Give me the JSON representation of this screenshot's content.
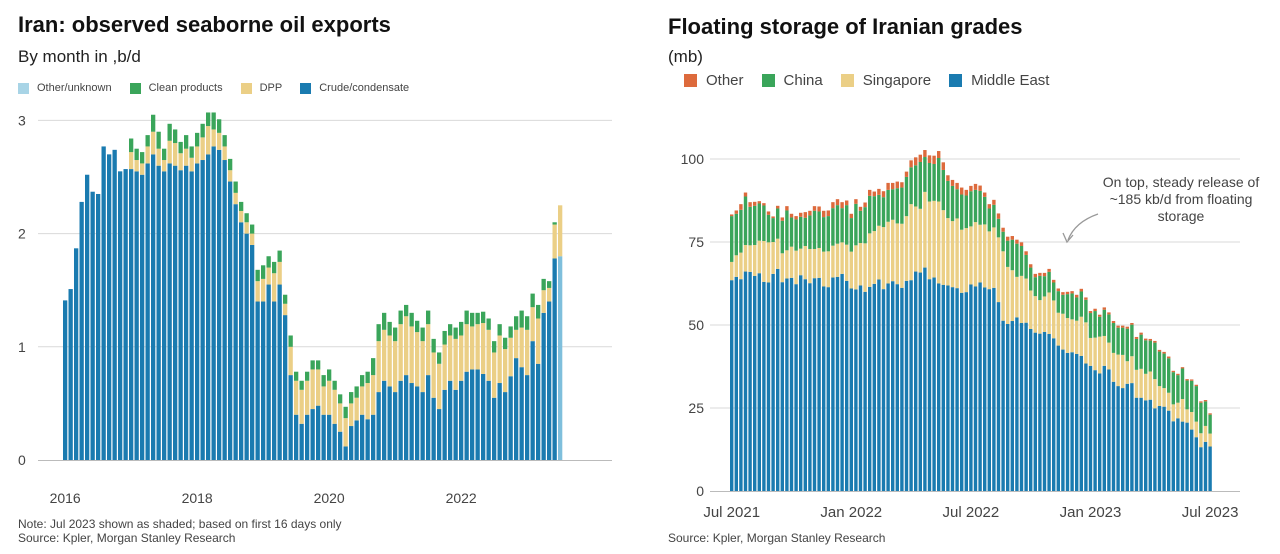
{
  "left": {
    "title": "Iran: observed seaborne oil exports",
    "subtitle": "By month in ,b/d",
    "note": "Note: Jul 2023 shown as shaded; based on first 16 days only",
    "source": "Source: Kpler, Morgan Stanley Research",
    "legend": [
      {
        "label": "Other/unknown",
        "color": "#a8d4e6"
      },
      {
        "label": "Clean products",
        "color": "#3aa55a"
      },
      {
        "label": "DPP",
        "color": "#ebcf86"
      },
      {
        "label": "Crude/condensate",
        "color": "#1a7bb0"
      }
    ]
  },
  "right": {
    "title": "Floating storage of Iranian grades",
    "subtitle": "(mb)",
    "source": "Source: Kpler, Morgan Stanley Research",
    "annotation": [
      "On top, steady release of",
      "~185 kb/d from floating",
      "storage"
    ],
    "legend": [
      {
        "label": "Other",
        "color": "#dd6a3c"
      },
      {
        "label": "China",
        "color": "#3aa55a"
      },
      {
        "label": "Singapore",
        "color": "#ebcf86"
      },
      {
        "label": "Middle East",
        "color": "#1a7bb0"
      }
    ]
  },
  "chart_data": [
    {
      "type": "bar",
      "stacked": true,
      "title": "Iran: observed seaborne oil exports",
      "subtitle": "By month in ,b/d",
      "x_tick_labels": [
        "2016",
        "2018",
        "2020",
        "2022"
      ],
      "y_tick_labels": [
        "0",
        "1",
        "2",
        "3"
      ],
      "ylim": [
        0,
        3.2
      ],
      "grid": true,
      "legend_position": "top",
      "categories": [
        "2016-01",
        "2016-02",
        "2016-03",
        "2016-04",
        "2016-05",
        "2016-06",
        "2016-07",
        "2016-08",
        "2016-09",
        "2016-10",
        "2016-11",
        "2016-12",
        "2017-01",
        "2017-02",
        "2017-03",
        "2017-04",
        "2017-05",
        "2017-06",
        "2017-07",
        "2017-08",
        "2017-09",
        "2017-10",
        "2017-11",
        "2017-12",
        "2018-01",
        "2018-02",
        "2018-03",
        "2018-04",
        "2018-05",
        "2018-06",
        "2018-07",
        "2018-08",
        "2018-09",
        "2018-10",
        "2018-11",
        "2018-12",
        "2019-01",
        "2019-02",
        "2019-03",
        "2019-04",
        "2019-05",
        "2019-06",
        "2019-07",
        "2019-08",
        "2019-09",
        "2019-10",
        "2019-11",
        "2019-12",
        "2020-01",
        "2020-02",
        "2020-03",
        "2020-04",
        "2020-05",
        "2020-06",
        "2020-07",
        "2020-08",
        "2020-09",
        "2020-10",
        "2020-11",
        "2020-12",
        "2021-01",
        "2021-02",
        "2021-03",
        "2021-04",
        "2021-05",
        "2021-06",
        "2021-07",
        "2021-08",
        "2021-09",
        "2021-10",
        "2021-11",
        "2021-12",
        "2022-01",
        "2022-02",
        "2022-03",
        "2022-04",
        "2022-05",
        "2022-06",
        "2022-07",
        "2022-08",
        "2022-09",
        "2022-10",
        "2022-11",
        "2022-12",
        "2023-01",
        "2023-02",
        "2023-03",
        "2023-04",
        "2023-05",
        "2023-06",
        "2023-07"
      ],
      "shaded_last": true,
      "series": [
        {
          "name": "Crude/condensate",
          "color": "#1a7bb0",
          "values": [
            1.41,
            1.51,
            1.87,
            2.28,
            2.52,
            2.37,
            2.35,
            2.77,
            2.7,
            2.74,
            2.55,
            2.57,
            2.57,
            2.55,
            2.52,
            2.62,
            2.7,
            2.6,
            2.55,
            2.62,
            2.6,
            2.56,
            2.6,
            2.55,
            2.62,
            2.65,
            2.7,
            2.77,
            2.74,
            2.65,
            2.46,
            2.26,
            2.1,
            2.0,
            1.9,
            1.4,
            1.4,
            1.55,
            1.4,
            1.55,
            1.28,
            0.75,
            0.4,
            0.32,
            0.4,
            0.45,
            0.48,
            0.4,
            0.4,
            0.32,
            0.25,
            0.12,
            0.3,
            0.35,
            0.4,
            0.36,
            0.4,
            0.6,
            0.7,
            0.65,
            0.6,
            0.7,
            0.75,
            0.68,
            0.65,
            0.6,
            0.75,
            0.55,
            0.45,
            0.62,
            0.7,
            0.62,
            0.7,
            0.78,
            0.8,
            0.8,
            0.76,
            0.7,
            0.55,
            0.68,
            0.6,
            0.74,
            0.9,
            0.82,
            0.75,
            1.05,
            0.85,
            1.3,
            1.4,
            1.78,
            1.8
          ]
        },
        {
          "name": "DPP",
          "color": "#ebcf86",
          "values": [
            0,
            0,
            0,
            0,
            0,
            0,
            0,
            0,
            0,
            0,
            0,
            0,
            0.15,
            0.1,
            0.1,
            0.15,
            0.2,
            0.15,
            0.1,
            0.2,
            0.2,
            0.15,
            0.15,
            0.12,
            0.15,
            0.2,
            0.25,
            0.15,
            0.15,
            0.12,
            0.1,
            0.1,
            0.1,
            0.1,
            0.1,
            0.18,
            0.2,
            0.15,
            0.25,
            0.2,
            0.1,
            0.25,
            0.3,
            0.3,
            0.3,
            0.35,
            0.32,
            0.25,
            0.3,
            0.3,
            0.25,
            0.25,
            0.2,
            0.2,
            0.25,
            0.32,
            0.35,
            0.45,
            0.45,
            0.45,
            0.45,
            0.5,
            0.52,
            0.5,
            0.48,
            0.45,
            0.45,
            0.4,
            0.4,
            0.4,
            0.4,
            0.45,
            0.4,
            0.42,
            0.38,
            0.4,
            0.45,
            0.45,
            0.4,
            0.42,
            0.38,
            0.34,
            0.25,
            0.35,
            0.4,
            0.3,
            0.4,
            0.2,
            0.12,
            0.3,
            0.45
          ]
        },
        {
          "name": "Clean products",
          "color": "#3aa55a",
          "values": [
            0,
            0,
            0,
            0,
            0,
            0,
            0,
            0,
            0,
            0,
            0,
            0,
            0.12,
            0.1,
            0.1,
            0.1,
            0.15,
            0.15,
            0.1,
            0.15,
            0.12,
            0.1,
            0.12,
            0.1,
            0.12,
            0.12,
            0.12,
            0.15,
            0.12,
            0.1,
            0.1,
            0.1,
            0.08,
            0.08,
            0.08,
            0.1,
            0.12,
            0.1,
            0.1,
            0.1,
            0.08,
            0.1,
            0.08,
            0.08,
            0.08,
            0.08,
            0.08,
            0.1,
            0.1,
            0.08,
            0.08,
            0.1,
            0.1,
            0.1,
            0.1,
            0.1,
            0.15,
            0.15,
            0.15,
            0.12,
            0.12,
            0.12,
            0.1,
            0.12,
            0.1,
            0.12,
            0.12,
            0.12,
            0.1,
            0.12,
            0.1,
            0.1,
            0.12,
            0.12,
            0.12,
            0.1,
            0.1,
            0.1,
            0.1,
            0.1,
            0.1,
            0.1,
            0.12,
            0.15,
            0.12,
            0.12,
            0.12,
            0.1,
            0.06,
            0.02,
            0.0
          ]
        },
        {
          "name": "Other/unknown",
          "color": "#a8d4e6",
          "values": [
            0,
            0,
            0,
            0,
            0,
            0,
            0,
            0,
            0,
            0,
            0,
            0,
            0,
            0,
            0,
            0,
            0,
            0,
            0,
            0,
            0,
            0,
            0,
            0,
            0,
            0,
            0,
            0,
            0,
            0,
            0,
            0,
            0,
            0,
            0,
            0,
            0,
            0,
            0,
            0,
            0,
            0,
            0,
            0,
            0,
            0,
            0,
            0,
            0,
            0,
            0,
            0,
            0,
            0,
            0,
            0,
            0,
            0,
            0,
            0,
            0,
            0,
            0,
            0,
            0,
            0,
            0,
            0,
            0,
            0,
            0,
            0,
            0,
            0,
            0,
            0,
            0,
            0,
            0,
            0,
            0,
            0,
            0,
            0,
            0,
            0,
            0,
            0,
            0,
            0,
            0
          ]
        }
      ]
    },
    {
      "type": "bar",
      "stacked": true,
      "title": "Floating storage of Iranian grades",
      "ylabel": "(mb)",
      "x_tick_labels": [
        "Jul 2021",
        "Jan 2022",
        "Jul 2022",
        "Jan 2023",
        "Jul 2023"
      ],
      "y_tick_labels": [
        "0",
        "25",
        "50",
        "75",
        "100"
      ],
      "ylim": [
        0,
        115
      ],
      "grid": true,
      "legend_position": "top",
      "annotation": "On top, steady release of ~185 kb/d from floating storage",
      "x_start": "2021-07-01",
      "bar_count": 105,
      "series": [
        {
          "name": "Middle East",
          "color": "#1a7bb0",
          "values": [
            63.5,
            64.5,
            63.8,
            66.1,
            66.0,
            64.8,
            65.6,
            63.0,
            62.8,
            65.4,
            66.9,
            62.9,
            64.0,
            64.2,
            62.3,
            65.0,
            63.8,
            62.6,
            64.1,
            64.2,
            61.6,
            61.4,
            64.3,
            64.5,
            65.4,
            63.3,
            61.0,
            60.7,
            61.9,
            60.0,
            61.5,
            62.4,
            63.7,
            60.8,
            62.5,
            63.2,
            62.3,
            61.2,
            63.3,
            63.5,
            66.1,
            65.8,
            67.3,
            63.8,
            64.3,
            62.5,
            62.1,
            61.9,
            61.4,
            61.1,
            59.7,
            59.9,
            62.2,
            61.6,
            62.8,
            61.3,
            60.8,
            61.2,
            56.9,
            51.3,
            50.3,
            51.2,
            52.3,
            50.6,
            50.7,
            48.8,
            47.7,
            47.4,
            47.9,
            47.3,
            46.0,
            43.8,
            42.6,
            41.6,
            41.8,
            41.3,
            40.7,
            38.4,
            37.7,
            36.4,
            35.4,
            37.7,
            36.6,
            32.9,
            31.6,
            31.0,
            32.3,
            32.5,
            28.1,
            28.1,
            27.3,
            27.5,
            24.9,
            25.6,
            25.4,
            24.2,
            21.0,
            21.9,
            20.9,
            20.6,
            18.5,
            16.2,
            13.2,
            14.8,
            13.4
          ]
        },
        {
          "name": "Singapore",
          "color": "#ebcf86",
          "values": [
            5.5,
            6.5,
            8.0,
            8.0,
            8.0,
            9.3,
            9.8,
            12.3,
            12.1,
            9.6,
            9.1,
            8.7,
            8.5,
            9.4,
            10.1,
            8.0,
            10.0,
            10.3,
            8.8,
            9.0,
            10.5,
            10.8,
            9.6,
            10.0,
            9.5,
            10.9,
            11.1,
            13.3,
            12.8,
            14.6,
            16.1,
            15.9,
            16.2,
            18.7,
            18.6,
            18.5,
            18.3,
            19.3,
            19.5,
            22.9,
            19.6,
            19.2,
            22.8,
            23.4,
            23.1,
            24.7,
            22.5,
            20.3,
            19.9,
            21.0,
            19.0,
            19.3,
            17.5,
            19.4,
            17.4,
            19.0,
            17.4,
            18.2,
            19.5,
            20.9,
            17.2,
            15.3,
            12.2,
            14.2,
            13.3,
            11.6,
            11.0,
            10.1,
            10.7,
            12.5,
            11.4,
            9.9,
            10.8,
            10.5,
            9.9,
            10.0,
            11.8,
            12.4,
            8.4,
            9.8,
            11.1,
            9.0,
            8.1,
            8.7,
            9.5,
            10.0,
            6.8,
            8.1,
            8.4,
            8.7,
            8.0,
            8.5,
            8.8,
            6.0,
            5.6,
            5.4,
            5.1,
            4.7,
            6.8,
            4.0,
            5.3,
            4.7,
            4.2,
            4.8,
            3.9
          ]
        },
        {
          "name": "China",
          "color": "#3aa55a",
          "values": [
            13.8,
            12.5,
            12.9,
            14.6,
            11.6,
            11.8,
            11.2,
            10.7,
            8.3,
            7.2,
            9.1,
            9.8,
            12.0,
            8.8,
            9.4,
            9.6,
            8.5,
            10.1,
            11.5,
            11.0,
            10.4,
            10.6,
            11.3,
            11.6,
            10.3,
            11.9,
            10.1,
            12.5,
            9.7,
            10.9,
            11.3,
            10.5,
            9.3,
            9.0,
            9.6,
            9.2,
            10.6,
            10.9,
            11.8,
            11.1,
            12.4,
            14.1,
            10.5,
            11.6,
            11.1,
            13.1,
            12.1,
            11.2,
            10.6,
            8.8,
            10.6,
            9.8,
            10.6,
            9.7,
            10.2,
            8.3,
            6.9,
            6.8,
            5.6,
            5.9,
            7.9,
            9.2,
            10.0,
            9.0,
            7.1,
            6.9,
            5.7,
            7.3,
            6.1,
            6.2,
            5.4,
            6.5,
            5.7,
            7.2,
            7.8,
            7.0,
            7.6,
            6.8,
            7.5,
            8.0,
            6.0,
            7.9,
            8.5,
            9.0,
            8.1,
            8.2,
            9.8,
            9.5,
            9.3,
            10.3,
            10.1,
            9.3,
            11.0,
            10.4,
            10.4,
            10.4,
            9.7,
            8.3,
            9.2,
            8.7,
            9.4,
            10.7,
            9.2,
            7.4,
            5.7
          ]
        },
        {
          "name": "Other",
          "color": "#dd6a3c",
          "values": [
            0.5,
            1.0,
            1.7,
            1.2,
            1.4,
            1.2,
            0.7,
            0.7,
            1.0,
            0.5,
            0.8,
            1.0,
            1.3,
            1.1,
            1.0,
            1.2,
            1.7,
            1.4,
            1.4,
            1.5,
            1.9,
            1.7,
            1.8,
            1.8,
            1.8,
            1.4,
            1.3,
            1.4,
            1.2,
            1.4,
            1.8,
            1.4,
            1.8,
            1.8,
            2.1,
            1.9,
            2.0,
            1.6,
            1.6,
            2.1,
            2.4,
            2.2,
            2.1,
            2.3,
            2.5,
            2.1,
            2.3,
            1.7,
            1.8,
            1.9,
            2.1,
            1.7,
            1.6,
            1.8,
            1.6,
            1.3,
            1.3,
            1.5,
            1.6,
            1.2,
            1.2,
            1.1,
            1.2,
            1.1,
            1.1,
            1.0,
            1.0,
            0.9,
            1.0,
            0.9,
            0.8,
            0.8,
            0.8,
            0.7,
            0.7,
            0.8,
            0.8,
            0.7,
            0.6,
            0.7,
            0.6,
            0.7,
            0.6,
            0.6,
            0.6,
            0.6,
            0.6,
            0.5,
            0.6,
            0.6,
            0.5,
            0.5,
            0.5,
            0.5,
            0.5,
            0.5,
            0.4,
            0.4,
            0.4,
            0.4,
            0.4,
            0.4,
            0.4,
            0.4,
            0.4
          ]
        }
      ]
    }
  ]
}
